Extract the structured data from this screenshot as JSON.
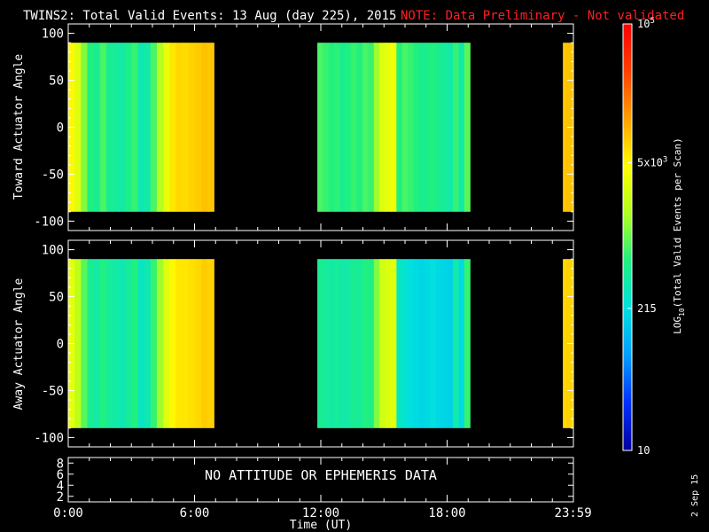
{
  "title": {
    "main": "TWINS2: Total Valid Events: 13 Aug (day 225), 2015",
    "note": "NOTE: Data Preliminary - Not validated",
    "note_color": "#ff2020"
  },
  "footer": {
    "xlabel": "Time (UT)",
    "date_stamp": "2 Sep 15"
  },
  "colorbar": {
    "label_pre": "LOG",
    "label_sub": "10",
    "label_post": "(Total Valid  Events per Scan)",
    "ticks": [
      {
        "base": "10",
        "exp": "5",
        "value": 100000
      },
      {
        "base": "5x10",
        "exp": "3",
        "value": 5000
      },
      {
        "base": "215",
        "exp": "",
        "value": 215
      },
      {
        "base": "10",
        "exp": "",
        "value": 10
      }
    ],
    "scale": "log",
    "range": [
      10,
      100000
    ],
    "colormap": [
      "#0000a0",
      "#0030ff",
      "#00a0ff",
      "#00e0e0",
      "#20f080",
      "#b0ff20",
      "#ffff00",
      "#ffa000",
      "#ff4000",
      "#ff0000"
    ]
  },
  "chart_data": [
    {
      "type": "heatmap",
      "ylabel": "Toward Actuator Angle",
      "ylim": [
        -110,
        110
      ],
      "yticks": [
        "100",
        "50",
        "0",
        "-50",
        "-100"
      ],
      "xlim": [
        "0:00",
        "24:00"
      ],
      "xticks": [
        "0:00",
        "6:00",
        "12:00",
        "18:00",
        "23:59"
      ],
      "data_y_extent": [
        -90,
        90
      ],
      "segments": [
        {
          "start": "0:00",
          "end": "6:55",
          "columns": [
            5000,
            3000,
            1200,
            600,
            500,
            800,
            500,
            450,
            400,
            550,
            700,
            350,
            400,
            800,
            1800,
            3500,
            6000,
            7000,
            6800,
            7500,
            8000,
            9000,
            8500
          ]
        },
        {
          "start": "11:50",
          "end": "19:05",
          "columns": [
            800,
            700,
            600,
            650,
            500,
            600,
            700,
            600,
            800,
            700,
            1500,
            3000,
            3500,
            4000,
            600,
            800,
            700,
            600,
            500,
            550,
            600,
            500,
            450,
            400,
            700,
            400,
            900
          ]
        },
        {
          "start": "23:30",
          "end": "23:59",
          "columns": [
            8500,
            9000,
            9000
          ]
        }
      ]
    },
    {
      "type": "heatmap",
      "ylabel": "Away Actuator Angle",
      "ylim": [
        -110,
        110
      ],
      "yticks": [
        "100",
        "50",
        "0",
        "-50",
        "-100"
      ],
      "xlim": [
        "0:00",
        "24:00"
      ],
      "xticks": [
        "0:00",
        "6:00",
        "12:00",
        "18:00",
        "23:59"
      ],
      "data_y_extent": [
        -90,
        90
      ],
      "segments": [
        {
          "start": "0:00",
          "end": "6:55",
          "columns": [
            3500,
            2000,
            900,
            500,
            400,
            600,
            450,
            400,
            350,
            450,
            600,
            300,
            350,
            700,
            1500,
            3000,
            5000,
            6000,
            6000,
            6500,
            7000,
            8000,
            7500
          ]
        },
        {
          "start": "11:50",
          "end": "19:05",
          "columns": [
            500,
            450,
            400,
            450,
            380,
            420,
            500,
            450,
            600,
            550,
            1200,
            2500,
            3000,
            3200,
            300,
            250,
            220,
            200,
            180,
            200,
            220,
            190,
            180,
            170,
            400,
            200,
            700
          ]
        },
        {
          "start": "23:30",
          "end": "23:59",
          "columns": [
            7000,
            7500,
            7500
          ]
        }
      ]
    }
  ],
  "bottom_panel": {
    "yticks": [
      "8",
      "6",
      "4",
      "2"
    ],
    "message": "NO ATTITUDE OR EPHEMERIS DATA"
  }
}
